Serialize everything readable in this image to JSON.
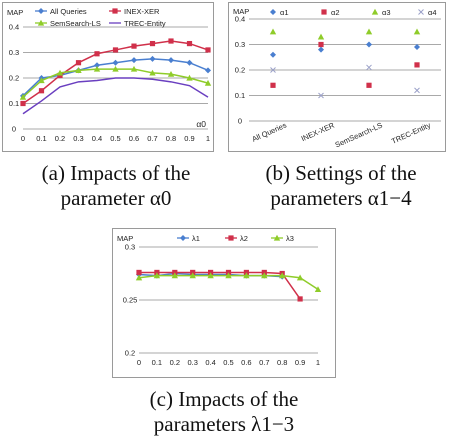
{
  "chart_data": [
    {
      "type": "line",
      "ylabel": "MAP",
      "xlabel": "α0",
      "x": [
        0,
        0.1,
        0.2,
        0.3,
        0.4,
        0.5,
        0.6,
        0.7,
        0.8,
        0.9,
        1
      ],
      "xticks": [
        "0",
        "0.1",
        "0.2",
        "0.3",
        "0.4",
        "0.5",
        "0.6",
        "0.7",
        "0.8",
        "0.9",
        "1"
      ],
      "ylim": [
        0,
        0.4
      ],
      "yticks": [
        "0",
        "0.1",
        "0.2",
        "0.3",
        "0.4"
      ],
      "legend_position": "top",
      "series": [
        {
          "name": "All Queries",
          "color": "#4a7fd0",
          "marker": "diamond",
          "values": [
            0.13,
            0.2,
            0.21,
            0.23,
            0.25,
            0.26,
            0.27,
            0.275,
            0.27,
            0.26,
            0.23
          ]
        },
        {
          "name": "INEX-XER",
          "color": "#d0304a",
          "marker": "square",
          "values": [
            0.1,
            0.15,
            0.21,
            0.26,
            0.295,
            0.31,
            0.325,
            0.335,
            0.345,
            0.335,
            0.31
          ]
        },
        {
          "name": "SemSearch-LS",
          "color": "#8fcc2a",
          "marker": "triangle",
          "values": [
            0.125,
            0.19,
            0.22,
            0.23,
            0.235,
            0.235,
            0.235,
            0.22,
            0.215,
            0.2,
            0.18
          ]
        },
        {
          "name": "TREC-Entity",
          "color": "#6a3fc0",
          "marker": "none",
          "values": [
            0.06,
            0.11,
            0.165,
            0.185,
            0.19,
            0.2,
            0.2,
            0.195,
            0.185,
            0.17,
            0.125
          ]
        }
      ]
    },
    {
      "type": "scatter",
      "ylabel": "MAP",
      "categories": [
        "All Queries",
        "INEX-XER",
        "SemSearch-LS",
        "TREC-Entity"
      ],
      "ylim": [
        0,
        0.4
      ],
      "yticks": [
        "0",
        "0.1",
        "0.2",
        "0.3",
        "0.4"
      ],
      "legend_position": "top",
      "series": [
        {
          "name": "α1",
          "color": "#4a7fd0",
          "marker": "diamond",
          "values": [
            0.26,
            0.28,
            0.3,
            0.29
          ]
        },
        {
          "name": "α2",
          "color": "#d0304a",
          "marker": "square",
          "values": [
            0.14,
            0.3,
            0.14,
            0.22
          ]
        },
        {
          "name": "α3",
          "color": "#8fcc2a",
          "marker": "triangle",
          "values": [
            0.35,
            0.33,
            0.35,
            0.35
          ]
        },
        {
          "name": "α4",
          "color": "#9aa0c8",
          "marker": "x",
          "values": [
            0.2,
            0.1,
            0.21,
            0.12
          ]
        }
      ]
    },
    {
      "type": "line",
      "ylabel": "MAP",
      "x": [
        0,
        0.1,
        0.2,
        0.3,
        0.4,
        0.5,
        0.6,
        0.7,
        0.8,
        0.9,
        1
      ],
      "xticks": [
        "0",
        "0.1",
        "0.2",
        "0.3",
        "0.4",
        "0.5",
        "0.6",
        "0.7",
        "0.8",
        "0.9",
        "1"
      ],
      "ylim": [
        0.2,
        0.3
      ],
      "yticks": [
        "0.2",
        "0.25",
        "0.3"
      ],
      "legend_position": "top",
      "series": [
        {
          "name": "λ1",
          "color": "#4a7fd0",
          "marker": "diamond",
          "values": [
            0.274,
            0.273,
            0.275,
            0.274,
            0.274,
            0.274,
            0.273,
            0.273,
            0.272,
            null,
            null
          ]
        },
        {
          "name": "λ2",
          "color": "#d0304a",
          "marker": "square",
          "values": [
            0.276,
            0.276,
            0.276,
            0.276,
            0.276,
            0.276,
            0.276,
            0.276,
            0.275,
            0.251,
            null
          ]
        },
        {
          "name": "λ3",
          "color": "#8fcc2a",
          "marker": "triangle",
          "values": [
            0.271,
            0.273,
            0.273,
            0.273,
            0.273,
            0.273,
            0.273,
            0.273,
            0.273,
            0.271,
            0.26
          ]
        }
      ]
    }
  ],
  "captions": {
    "a_line1": "(a) Impacts of the",
    "a_line2": "parameter α0",
    "b_line1": "(b) Settings of the",
    "b_line2": "parameters α1−4",
    "c_line1": "(c) Impacts of the",
    "c_line2": "parameters λ1−3"
  }
}
